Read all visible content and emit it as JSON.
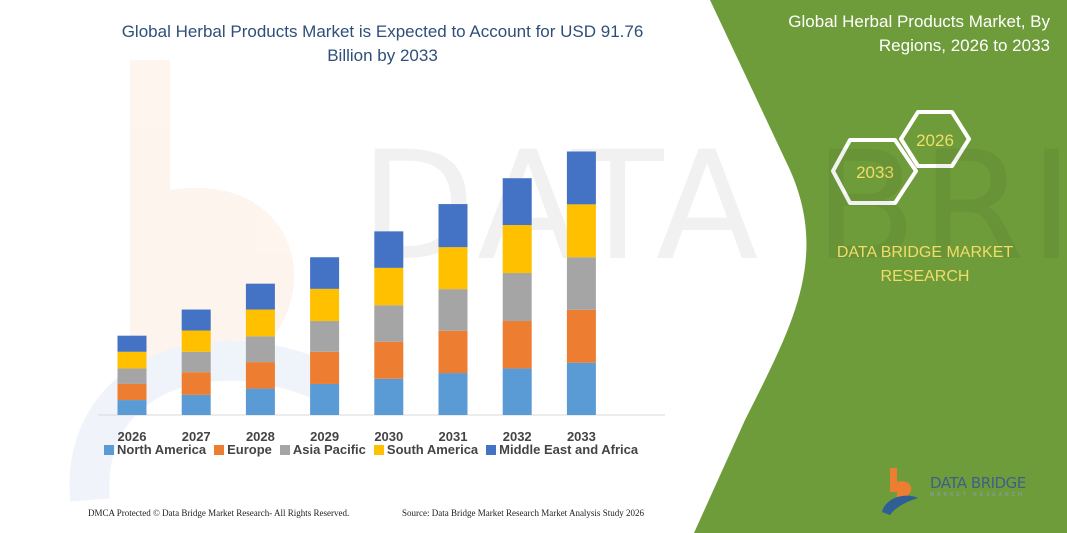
{
  "title": "Global Herbal Products Market is Expected to Account for USD 91.76 Billion by 2033",
  "side_panel": {
    "title": "Global Herbal Products Market, By Regions, 2026 to 2033",
    "hex_labels": [
      "2026",
      "2033"
    ],
    "brand": "DATA BRIDGE MARKET RESEARCH",
    "panel_color": "#6f9c3a",
    "hex_text_color": "#f2dc6a"
  },
  "watermark": "DATA BRIDGE",
  "footer": {
    "copyright": "DMCA Protected © Data Bridge Market Research-  All Rights Reserved.",
    "source": "Source: Data Bridge Market Research  Market Analysis Study 2026"
  },
  "logo": {
    "name": "DATA BRIDGE",
    "subtitle": "MARKET RESEARCH"
  },
  "chart_data": {
    "type": "bar",
    "stacked": true,
    "title": "Global Herbal Products Market is Expected to Account for USD 91.76 Billion by 2033",
    "xlabel": "",
    "ylabel": "",
    "ylim": [
      0,
      95
    ],
    "grid": false,
    "legend": "bottom",
    "categories": [
      "2026",
      "2027",
      "2028",
      "2029",
      "2030",
      "2031",
      "2032",
      "2033"
    ],
    "series": [
      {
        "name": "North America",
        "color": "#5b9bd5",
        "values": [
          5.2,
          7.0,
          9.2,
          10.8,
          12.6,
          14.6,
          16.2,
          18.2
        ]
      },
      {
        "name": "Europe",
        "color": "#ed7d31",
        "values": [
          5.6,
          7.9,
          9.2,
          11.2,
          12.9,
          14.7,
          16.5,
          18.4
        ]
      },
      {
        "name": "Asia Pacific",
        "color": "#a5a5a5",
        "values": [
          5.4,
          7.1,
          9.0,
          10.7,
          12.7,
          14.5,
          16.7,
          18.3
        ]
      },
      {
        "name": "South America",
        "color": "#ffc000",
        "values": [
          5.8,
          7.4,
          9.3,
          11.2,
          13.0,
          14.6,
          16.7,
          18.4
        ]
      },
      {
        "name": "Middle East and Africa",
        "color": "#4472c4",
        "values": [
          5.6,
          7.3,
          9.0,
          11.0,
          12.7,
          15.0,
          16.3,
          18.4
        ]
      }
    ]
  }
}
